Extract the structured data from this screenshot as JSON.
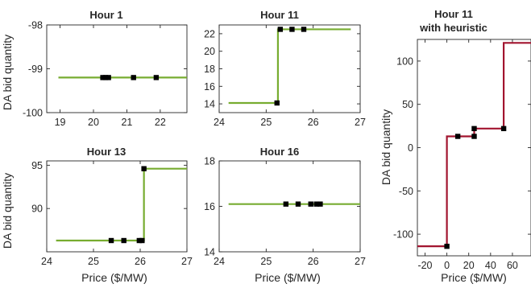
{
  "figure": {
    "xlabel": "Price ($/MW)",
    "ylabel": "DA bid quantity"
  },
  "chart_data": [
    {
      "type": "line",
      "title": "Hour 1",
      "title2": "",
      "color": "#77ac30",
      "xlim": [
        18.6,
        22.8
      ],
      "ylim": [
        -100,
        -98
      ],
      "xticks": [
        19,
        20,
        21,
        22
      ],
      "yticks": [
        -100,
        -99,
        -98
      ],
      "line_x": [
        18.95,
        22.8
      ],
      "line_y": [
        -99.2,
        -99.2
      ],
      "points_x": [
        20.28,
        20.36,
        20.45,
        21.2,
        21.88
      ],
      "points_y": [
        -99.2,
        -99.2,
        -99.2,
        -99.2,
        -99.2
      ]
    },
    {
      "type": "line",
      "title": "Hour 11",
      "title2": "",
      "color": "#77ac30",
      "xlim": [
        24,
        27
      ],
      "ylim": [
        13,
        23
      ],
      "xticks": [
        24,
        25,
        26,
        27
      ],
      "yticks": [
        14,
        16,
        18,
        20,
        22
      ],
      "line_x": [
        24.2,
        25.25,
        25.25,
        26.8
      ],
      "line_y": [
        14.1,
        14.1,
        22.5,
        22.5
      ],
      "points_x": [
        25.23,
        25.3,
        25.55,
        25.8
      ],
      "points_y": [
        14.1,
        22.5,
        22.5,
        22.5
      ]
    },
    {
      "type": "line",
      "title": "Hour 11",
      "title2": "with heuristic",
      "color": "#a2142f",
      "xlim": [
        -27,
        77
      ],
      "ylim": [
        -125,
        125
      ],
      "xticks": [
        -20,
        0,
        20,
        40,
        60
      ],
      "yticks": [
        -100,
        -50,
        0,
        50,
        100
      ],
      "line_x": [
        -27,
        0,
        0,
        25,
        25,
        52,
        52,
        77
      ],
      "line_y": [
        -114,
        -114,
        13,
        13,
        22,
        22,
        121,
        121
      ],
      "points_x": [
        0,
        10,
        25,
        25,
        52
      ],
      "points_y": [
        -114,
        13,
        13,
        22,
        22
      ]
    },
    {
      "type": "line",
      "title": "Hour 13",
      "title2": "",
      "color": "#77ac30",
      "xlim": [
        24,
        27
      ],
      "ylim": [
        85,
        95.5
      ],
      "xticks": [
        24,
        25,
        26,
        27
      ],
      "yticks": [
        90,
        95
      ],
      "line_x": [
        24.2,
        26.08,
        26.08,
        27
      ],
      "line_y": [
        86.3,
        86.3,
        94.6,
        94.6
      ],
      "points_x": [
        25.38,
        25.65,
        25.98,
        26.04,
        26.08
      ],
      "points_y": [
        86.3,
        86.3,
        86.3,
        86.3,
        94.6
      ]
    },
    {
      "type": "line",
      "title": "Hour 16",
      "title2": "",
      "color": "#77ac30",
      "xlim": [
        24,
        27
      ],
      "ylim": [
        14,
        18
      ],
      "xticks": [
        24,
        25,
        26,
        27
      ],
      "yticks": [
        14,
        16,
        18
      ],
      "line_x": [
        24.2,
        27
      ],
      "line_y": [
        16.1,
        16.1
      ],
      "points_x": [
        25.42,
        25.68,
        25.95,
        26.07,
        26.15
      ],
      "points_y": [
        16.1,
        16.1,
        16.1,
        16.1,
        16.1
      ]
    }
  ]
}
